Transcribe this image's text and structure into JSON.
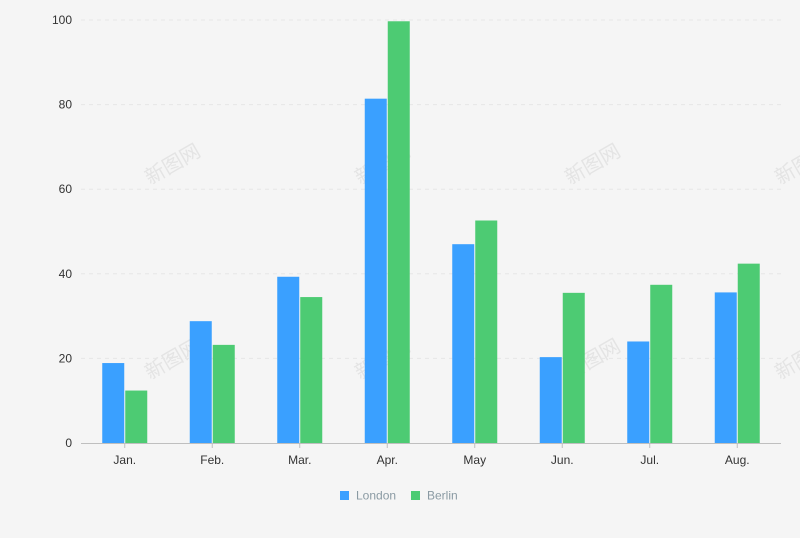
{
  "chart_data": {
    "type": "bar",
    "categories": [
      "Jan.",
      "Feb.",
      "Mar.",
      "Apr.",
      "May",
      "Jun.",
      "Jul.",
      "Aug."
    ],
    "series": [
      {
        "name": "London",
        "color": "#3aa0ff",
        "values": [
          18.9,
          28.8,
          39.3,
          81.4,
          47.0,
          20.3,
          24.0,
          35.6
        ]
      },
      {
        "name": "Berlin",
        "color": "#4dcb73",
        "values": [
          12.4,
          23.2,
          34.5,
          99.7,
          52.6,
          35.5,
          37.4,
          42.4
        ]
      }
    ],
    "y_ticks": [
      "0",
      "20",
      "40",
      "60",
      "80",
      "100"
    ],
    "ylim": [
      0,
      100
    ],
    "grid": true,
    "legend_position": "bottom-center",
    "colors": {
      "axis": "#bfbfbf",
      "grid": "#e6e6e6",
      "tick_text": "#333333",
      "legend_text": "#8a9aa3"
    }
  },
  "watermark": "新图网"
}
